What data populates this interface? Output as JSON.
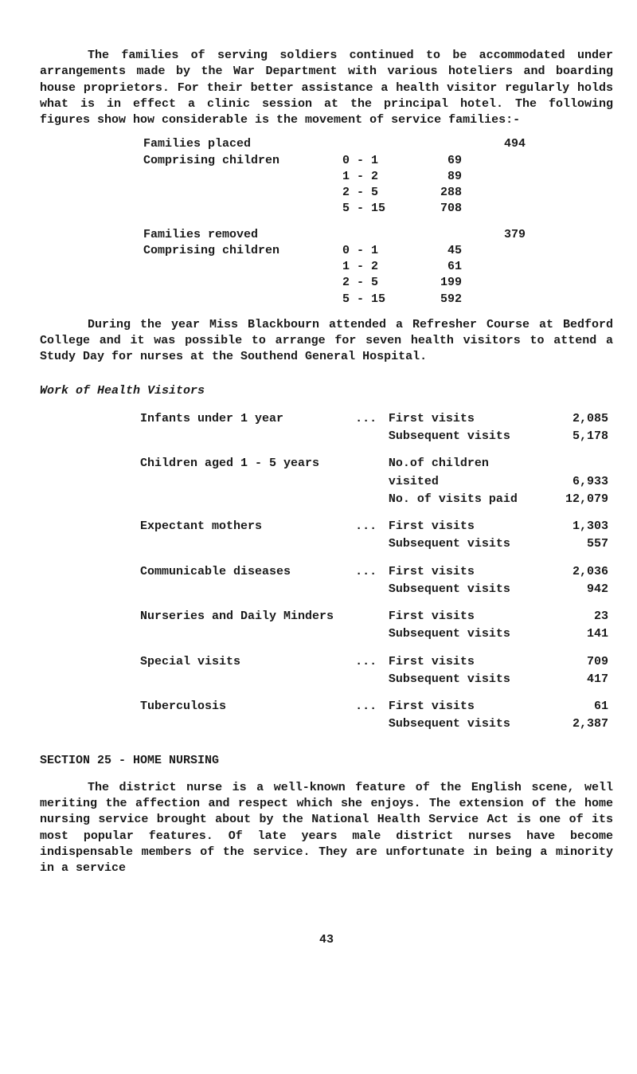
{
  "para1": "The families of serving soldiers continued to be accommodated under arrangements made by the War Department with various hoteliers and boarding house proprietors. For their better assistance a health visitor regularly holds what is in effect a clinic session at the principal hotel. The following figures show how considerable is the movement of service families:-",
  "families_placed": {
    "label": "Families placed",
    "total": "494",
    "comp_label": "Comprising children",
    "rows": [
      {
        "range": "0 - 1",
        "val": "69"
      },
      {
        "range": "1 - 2",
        "val": "89"
      },
      {
        "range": "2 - 5",
        "val": "288"
      },
      {
        "range": "5 - 15",
        "val": "708"
      }
    ]
  },
  "families_removed": {
    "label": "Families removed",
    "total": "379",
    "comp_label": "Comprising children",
    "rows": [
      {
        "range": "0 - 1",
        "val": "45"
      },
      {
        "range": "1 - 2",
        "val": "61"
      },
      {
        "range": "2 - 5",
        "val": "199"
      },
      {
        "range": "5 - 15",
        "val": "592"
      }
    ]
  },
  "para2": "During the year Miss Blackbourn attended a Refresher Course at Bedford College and it was possible to arrange for seven health visitors to attend a Study Day for nurses at the Southend General Hospital.",
  "work_heading": "Work of Health Visitors",
  "work": [
    {
      "cat": "Infants under 1 year",
      "dots": "...",
      "rows": [
        {
          "m": "First visits",
          "n": "2,085"
        },
        {
          "m": "Subsequent visits",
          "n": "5,178"
        }
      ]
    },
    {
      "cat": "Children aged 1 - 5 years",
      "dots": "",
      "rows": [
        {
          "m": "No.of children",
          "n": ""
        },
        {
          "m": "  visited",
          "n": "6,933"
        },
        {
          "m": "No. of visits paid",
          "n": "12,079"
        }
      ]
    },
    {
      "cat": "Expectant mothers",
      "dots": "...",
      "rows": [
        {
          "m": "First visits",
          "n": "1,303"
        },
        {
          "m": "Subsequent visits",
          "n": "557"
        }
      ]
    },
    {
      "cat": "Communicable diseases",
      "dots": "...",
      "rows": [
        {
          "m": "First visits",
          "n": "2,036"
        },
        {
          "m": "Subsequent visits",
          "n": "942"
        }
      ]
    },
    {
      "cat": "Nurseries and Daily Minders",
      "dots": "",
      "rows": [
        {
          "m": "First visits",
          "n": "23"
        },
        {
          "m": "Subsequent visits",
          "n": "141"
        }
      ]
    },
    {
      "cat": "Special visits",
      "dots": "...",
      "rows": [
        {
          "m": "First visits",
          "n": "709"
        },
        {
          "m": "Subsequent visits",
          "n": "417"
        }
      ]
    },
    {
      "cat": "Tuberculosis",
      "dots": "...",
      "rows": [
        {
          "m": "First visits",
          "n": "61"
        },
        {
          "m": "Subsequent visits",
          "n": "2,387"
        }
      ]
    }
  ],
  "section_head": "SECTION 25 - HOME NURSING",
  "para3": "The district nurse is a well-known feature of the English scene, well meriting the affection and respect which she enjoys. The extension of the home nursing service brought about by the National Health Service Act is one of its most popular features. Of late years male district nurses have become indispensable members of the service. They are unfortunate in being a minority in a service",
  "page_number": "43"
}
